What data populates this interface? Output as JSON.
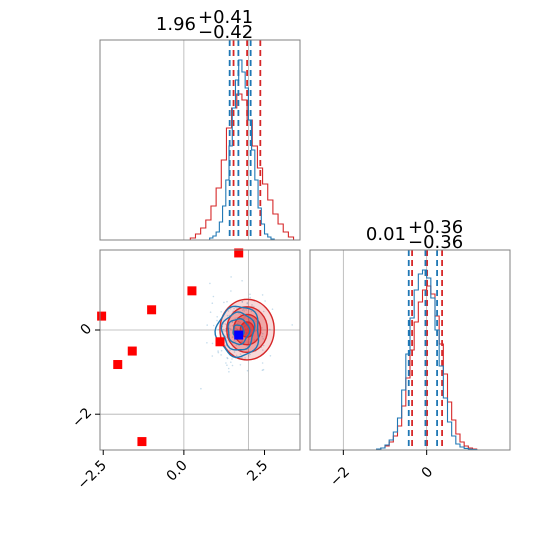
{
  "chart_data": {
    "type": "corner",
    "colors": {
      "red": "#d62728",
      "blue": "#1f77b4",
      "marker_red": "#ff0000",
      "marker_blue": "#0000ff",
      "grid": "#b0b0b0",
      "axes": "#808080"
    },
    "panels": [
      {
        "id": "hist-top",
        "type": "histogram",
        "title": {
          "value": "1.96",
          "plus": "+0.41",
          "minus": "−0.42"
        },
        "xlim": [
          -2.6,
          3.6
        ],
        "grid_x": [
          0,
          2
        ],
        "series": [
          {
            "name": "",
            "color": "#d62728",
            "bin_edges": [
              0.2,
              0.36,
              0.52,
              0.68,
              0.84,
              1.0,
              1.16,
              1.32,
              1.48,
              1.64,
              1.8,
              1.96,
              2.12,
              2.28,
              2.44,
              2.6,
              2.76,
              2.92,
              3.08,
              3.24,
              3.4
            ],
            "counts": [
              0.01,
              0.03,
              0.06,
              0.1,
              0.17,
              0.26,
              0.4,
              0.56,
              0.66,
              0.73,
              0.7,
              0.6,
              0.47,
              0.36,
              0.28,
              0.2,
              0.13,
              0.08,
              0.04,
              0.015
            ],
            "quantiles": [
              1.54,
              1.96,
              2.37
            ]
          },
          {
            "name": "",
            "color": "#1f77b4",
            "bin_edges": [
              0.8,
              0.9,
              1.0,
              1.1,
              1.2,
              1.3,
              1.4,
              1.5,
              1.6,
              1.7,
              1.8,
              1.9,
              2.0,
              2.1,
              2.2,
              2.3,
              2.4,
              2.5,
              2.6,
              2.7,
              2.8
            ],
            "counts": [
              0.01,
              0.02,
              0.04,
              0.09,
              0.17,
              0.3,
              0.47,
              0.66,
              0.8,
              0.9,
              0.84,
              0.76,
              0.6,
              0.45,
              0.3,
              0.16,
              0.08,
              0.03,
              0.015,
              0.005
            ],
            "quantiles": [
              1.42,
              1.69,
              2.07
            ]
          }
        ],
        "tick_labels": []
      },
      {
        "id": "hist-right",
        "type": "histogram",
        "title": {
          "value": "0.01",
          "plus": "+0.36",
          "minus": "−0.36"
        },
        "xlim": [
          -2.8,
          2.0
        ],
        "grid_x": [
          -2,
          0
        ],
        "series": [
          {
            "name": "",
            "color": "#d62728",
            "bin_edges": [
              -1.2,
              -1.1,
              -1.0,
              -0.9,
              -0.8,
              -0.7,
              -0.6,
              -0.5,
              -0.4,
              -0.3,
              -0.2,
              -0.1,
              0.0,
              0.1,
              0.2,
              0.3,
              0.4,
              0.5,
              0.6,
              0.7,
              0.8,
              0.9,
              1.0,
              1.1,
              1.2
            ],
            "counts": [
              0.005,
              0.01,
              0.02,
              0.04,
              0.07,
              0.12,
              0.22,
              0.36,
              0.5,
              0.64,
              0.74,
              0.8,
              0.82,
              0.78,
              0.67,
              0.53,
              0.38,
              0.24,
              0.15,
              0.08,
              0.04,
              0.02,
              0.01,
              0.005
            ],
            "quantiles": [
              -0.35,
              0.01,
              0.37
            ]
          },
          {
            "name": "",
            "color": "#1f77b4",
            "bin_edges": [
              -1.2,
              -1.1,
              -1.0,
              -0.9,
              -0.8,
              -0.7,
              -0.6,
              -0.5,
              -0.4,
              -0.3,
              -0.2,
              -0.1,
              0.0,
              0.1,
              0.2,
              0.3,
              0.4,
              0.5,
              0.6,
              0.7,
              0.8,
              0.9,
              1.0,
              1.1,
              1.2
            ],
            "counts": [
              0.005,
              0.01,
              0.025,
              0.05,
              0.09,
              0.16,
              0.3,
              0.48,
              0.66,
              0.8,
              0.88,
              0.9,
              0.86,
              0.76,
              0.6,
              0.42,
              0.26,
              0.14,
              0.07,
              0.03,
              0.015,
              0.008,
              0.004,
              0.002
            ],
            "quantiles": [
              -0.43,
              -0.03,
              0.25
            ]
          }
        ],
        "tick_labels": [
          "−2",
          "0"
        ],
        "tick_values": [
          -2,
          0
        ]
      },
      {
        "id": "scatter-2d",
        "type": "contour-scatter",
        "xlim": [
          -2.6,
          3.6
        ],
        "ylim": [
          -2.85,
          1.9
        ],
        "grid_x": [
          0,
          2
        ],
        "grid_y": [
          -2,
          0
        ],
        "x_tick_labels": [
          "−2.5",
          "0.0",
          "2.5"
        ],
        "x_tick_values": [
          -2.5,
          0.0,
          2.5
        ],
        "y_tick_labels": [
          "−2",
          "0"
        ],
        "y_tick_values": [
          -2,
          0
        ],
        "red_contours": {
          "center": [
            1.96,
            0.01
          ],
          "sigma": [
            0.42,
            0.36
          ],
          "levels": [
            0.5,
            1.0,
            1.5,
            2.0
          ]
        },
        "blue_contours": {
          "center": [
            1.69,
            -0.03
          ],
          "sigma": [
            0.33,
            0.3
          ],
          "levels": [
            0.5,
            1.0,
            1.5,
            2.0
          ]
        },
        "red_points": [
          [
            -2.55,
            0.33
          ],
          [
            -2.05,
            -0.82
          ],
          [
            -1.6,
            -0.5
          ],
          [
            -1.0,
            0.48
          ],
          [
            0.25,
            0.93
          ],
          [
            1.7,
            1.83
          ],
          [
            1.12,
            -0.28
          ],
          [
            -1.3,
            -2.65
          ]
        ],
        "blue_points": [
          [
            1.7,
            -0.12
          ]
        ]
      }
    ]
  }
}
